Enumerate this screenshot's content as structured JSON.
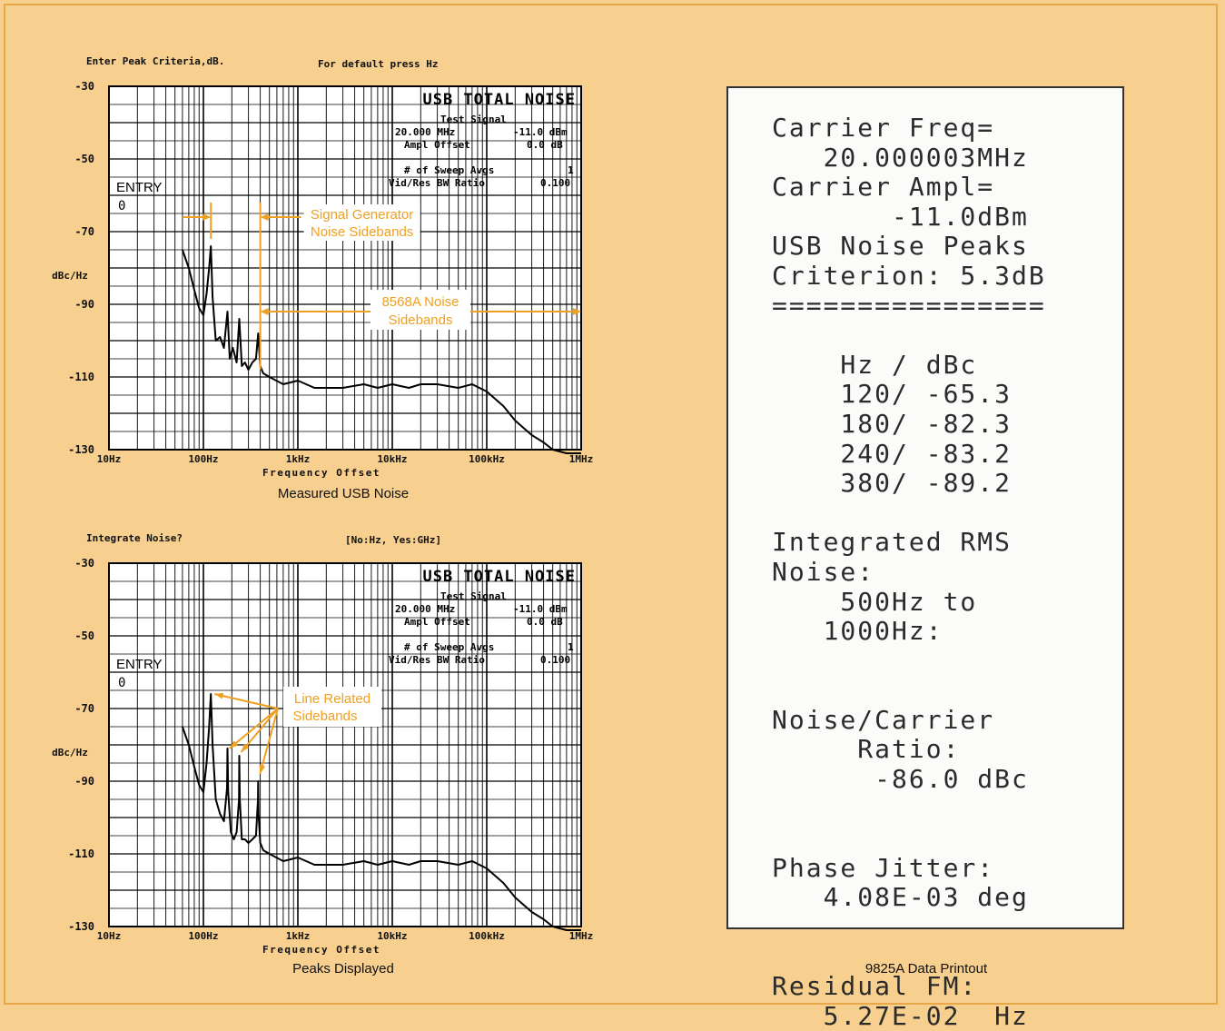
{
  "colors": {
    "background": "#f7cf8e",
    "frame": "#e8a84a",
    "annotation": "#f0a020",
    "trace": "#000000",
    "printout_bg": "#fbfbfa"
  },
  "chart_data": [
    {
      "type": "line",
      "prompt_left": "Enter Peak Criteria,dB.",
      "prompt_right": "For default press Hz",
      "title": "USB TOTAL NOISE",
      "info": {
        "test_signal": "Test Signal",
        "freq": "20.000 MHz",
        "ampl": "-11.0 dBm",
        "offset_label": "Ampl Offset",
        "offset": "0.0 dB",
        "avgs_label": "# of Sweep Avgs",
        "avgs": "1",
        "ratio_label": "Vid/Res BW Ratio",
        "ratio": "0.100"
      },
      "entry_label": "ENTRY",
      "entry_value": "0",
      "ylabel": "dBc/Hz",
      "xlabel": "Frequency Offset",
      "caption": "Measured USB Noise",
      "yticks": [
        "-30",
        "-50",
        "-70",
        "-90",
        "-110",
        "-130"
      ],
      "xticks": [
        "10Hz",
        "100Hz",
        "1kHz",
        "10kHz",
        "100kHz",
        "1MHz"
      ],
      "xscale": "log",
      "xlim": [
        10,
        1000000
      ],
      "ylim": [
        -130,
        -30
      ],
      "annotations": [
        {
          "text": [
            "Signal Generator",
            "Noise Sidebands"
          ]
        },
        {
          "text": [
            "8568A Noise",
            "Sidebands"
          ]
        }
      ],
      "series": [
        {
          "x": [
            60,
            70,
            80,
            90,
            100,
            108,
            115,
            120,
            125,
            135,
            150,
            165,
            180,
            190,
            205,
            225,
            240,
            255,
            275,
            300,
            330,
            360,
            380,
            400,
            430,
            500,
            700,
            1000,
            1500,
            2000,
            3000,
            5000,
            7000,
            10000,
            15000,
            20000,
            30000,
            50000,
            70000,
            100000,
            150000,
            200000,
            300000,
            400000,
            500000,
            700000,
            1000000
          ],
          "y": [
            -75,
            -80,
            -86,
            -91,
            -93,
            -87,
            -80,
            -74,
            -88,
            -100,
            -99,
            -102,
            -92,
            -105,
            -102,
            -106,
            -94,
            -107,
            -106,
            -108,
            -106,
            -105,
            -98,
            -107,
            -109,
            -110,
            -112,
            -111,
            -113,
            -113,
            -113,
            -112,
            -113,
            -112,
            -113,
            -112,
            -112,
            -113,
            -112,
            -114,
            -118,
            -122,
            -126,
            -128,
            -130,
            -131,
            -131
          ]
        }
      ]
    },
    {
      "type": "line",
      "prompt_left": "Integrate Noise?",
      "prompt_right": "[No:Hz, Yes:GHz]",
      "title": "USB TOTAL NOISE",
      "info": {
        "test_signal": "Test Signal",
        "freq": "20.000 MHz",
        "ampl": "-11.0 dBm",
        "offset_label": "Ampl Offset",
        "offset": "0.0 dB",
        "avgs_label": "# of Sweep Avgs",
        "avgs": "1",
        "ratio_label": "Vid/Res BW Ratio",
        "ratio": "0.100"
      },
      "entry_label": "ENTRY",
      "entry_value": "0",
      "ylabel": "dBc/Hz",
      "xlabel": "Frequency Offset",
      "caption": "Peaks Displayed",
      "yticks": [
        "-30",
        "-50",
        "-70",
        "-90",
        "-110",
        "-130"
      ],
      "xticks": [
        "10Hz",
        "100Hz",
        "1kHz",
        "10kHz",
        "100kHz",
        "1MHz"
      ],
      "xscale": "log",
      "xlim": [
        10,
        1000000
      ],
      "ylim": [
        -130,
        -30
      ],
      "annotations": [
        {
          "text": [
            "Line Related",
            "Sidebands"
          ]
        }
      ],
      "series": [
        {
          "x": [
            60,
            70,
            80,
            90,
            100,
            108,
            115,
            120,
            125,
            135,
            150,
            165,
            178,
            180,
            183,
            195,
            210,
            225,
            238,
            240,
            243,
            255,
            275,
            300,
            330,
            360,
            378,
            380,
            383,
            400,
            430,
            500,
            700,
            1000,
            1500,
            2000,
            3000,
            5000,
            7000,
            10000,
            15000,
            20000,
            30000,
            50000,
            70000,
            100000,
            150000,
            200000,
            300000,
            400000,
            500000,
            700000,
            1000000
          ],
          "y": [
            -75,
            -80,
            -86,
            -91,
            -93,
            -85,
            -75,
            -66,
            -80,
            -95,
            -99,
            -101,
            -92,
            -81,
            -93,
            -104,
            -106,
            -104,
            -95,
            -83,
            -95,
            -106,
            -106,
            -107,
            -106,
            -105,
            -95,
            -90,
            -99,
            -107,
            -109,
            -110,
            -112,
            -111,
            -113,
            -113,
            -113,
            -112,
            -113,
            -112,
            -113,
            -112,
            -112,
            -113,
            -112,
            -114,
            -118,
            -122,
            -126,
            -128,
            -130,
            -131,
            -131
          ]
        }
      ]
    }
  ],
  "printout": {
    "caption": "9825A Data Printout",
    "lines": [
      "Carrier Freq=",
      "   20.000003MHz",
      "Carrier Ampl=",
      "       -11.0dBm",
      "USB Noise Peaks",
      "Criterion: 5.3dB",
      "================",
      "",
      "    Hz / dBc",
      "    120/ -65.3",
      "    180/ -82.3",
      "    240/ -83.2",
      "    380/ -89.2",
      "",
      "Integrated RMS",
      "Noise:",
      "    500Hz to",
      "   1000Hz:",
      "",
      "",
      "Noise/Carrier",
      "     Ratio:",
      "      -86.0 dBc",
      "",
      "",
      "Phase Jitter:",
      "   4.08E-03 deg",
      "",
      "",
      "Residual FM:",
      "   5.27E-02  Hz"
    ]
  }
}
